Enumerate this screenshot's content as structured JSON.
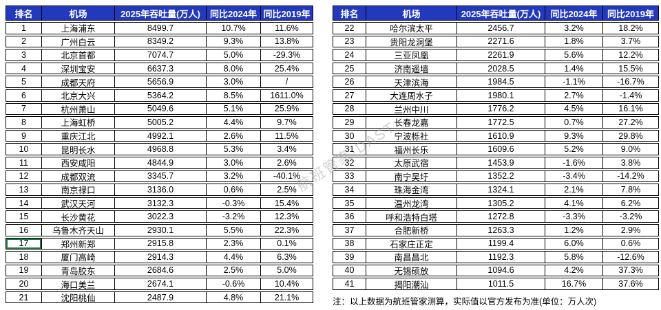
{
  "columns": [
    "排名",
    "机场",
    "2025年吞吐量(万人)",
    "同比2024年",
    "同比2019年"
  ],
  "tables": [
    {
      "name": "airport-ranking-1-21",
      "rows": [
        [
          "1",
          "上海浦东",
          "8499.7",
          "10.7%",
          "11.6%"
        ],
        [
          "2",
          "广州白云",
          "8349.2",
          "9.3%",
          "13.8%"
        ],
        [
          "3",
          "北京首都",
          "7074.7",
          "5.0%",
          "-29.3%"
        ],
        [
          "4",
          "深圳宝安",
          "6637.3",
          "8.0%",
          "25.4%"
        ],
        [
          "5",
          "成都天府",
          "5656.9",
          "3.0%",
          "/"
        ],
        [
          "6",
          "北京大兴",
          "5364.2",
          "8.5%",
          "1611.0%"
        ],
        [
          "7",
          "杭州萧山",
          "5049.6",
          "5.1%",
          "25.9%"
        ],
        [
          "8",
          "上海虹桥",
          "5005.2",
          "4.4%",
          "9.7%"
        ],
        [
          "9",
          "重庆江北",
          "4992.1",
          "2.6%",
          "11.5%"
        ],
        [
          "10",
          "昆明长水",
          "4968.8",
          "5.3%",
          "3.4%"
        ],
        [
          "11",
          "西安咸阳",
          "4844.9",
          "3.0%",
          "2.6%"
        ],
        [
          "12",
          "成都双流",
          "3345.7",
          "3.2%",
          "-40.1%"
        ],
        [
          "13",
          "南京禄口",
          "3136.0",
          "0.6%",
          "2.5%"
        ],
        [
          "14",
          "武汉天河",
          "3132.3",
          "-0.3%",
          "15.4%"
        ],
        [
          "15",
          "长沙黄花",
          "3022.3",
          "-3.2%",
          "12.3%"
        ],
        [
          "16",
          "乌鲁木齐天山",
          "2930.1",
          "5.5%",
          "22.3%"
        ],
        [
          "17",
          "郑州新郑",
          "2915.8",
          "2.3%",
          "0.1%"
        ],
        [
          "18",
          "厦门高崎",
          "2914.3",
          "4.4%",
          "6.3%"
        ],
        [
          "19",
          "青岛胶东",
          "2684.6",
          "2.5%",
          "5.0%"
        ],
        [
          "20",
          "海口美兰",
          "2674.1",
          "-0.6%",
          "10.4%"
        ],
        [
          "21",
          "沈阳桃仙",
          "2487.9",
          "4.8%",
          "21.1%"
        ]
      ]
    },
    {
      "name": "airport-ranking-22-41",
      "rows": [
        [
          "22",
          "哈尔滨太平",
          "2456.7",
          "3.2%",
          "18.2%"
        ],
        [
          "23",
          "贵阳龙洞堡",
          "2271.6",
          "1.8%",
          "3.7%"
        ],
        [
          "24",
          "三亚凤凰",
          "2261.9",
          "5.6%",
          "12.2%"
        ],
        [
          "25",
          "济南遥墙",
          "2028.5",
          "1.4%",
          "15.5%"
        ],
        [
          "26",
          "天津滨海",
          "1984.5",
          "-1.1%",
          "-16.7%"
        ],
        [
          "27",
          "大连周水子",
          "1980.1",
          "2.7%",
          "-1.4%"
        ],
        [
          "28",
          "兰州中川",
          "1776.2",
          "4.5%",
          "16.1%"
        ],
        [
          "29",
          "长春龙嘉",
          "1772.5",
          "0.7%",
          "27.2%"
        ],
        [
          "30",
          "宁波栎社",
          "1610.9",
          "9.3%",
          "29.8%"
        ],
        [
          "31",
          "福州长乐",
          "1609.6",
          "5.2%",
          "9.0%"
        ],
        [
          "32",
          "太原武宿",
          "1453.9",
          "-1.6%",
          "3.8%"
        ],
        [
          "33",
          "南宁吴圩",
          "1352.2",
          "-3.4%",
          "-14.2%"
        ],
        [
          "34",
          "珠海金湾",
          "1324.1",
          "2.1%",
          "7.8%"
        ],
        [
          "35",
          "温州龙湾",
          "1305.2",
          "4.1%",
          "6.2%"
        ],
        [
          "36",
          "呼和浩特白塔",
          "1272.8",
          "-3.3%",
          "-3.2%"
        ],
        [
          "37",
          "合肥新桥",
          "1263.3",
          "1.2%",
          "2.9%"
        ],
        [
          "38",
          "石家庄正定",
          "1199.4",
          "6.0%",
          "0.6%"
        ],
        [
          "39",
          "南昌昌北",
          "1192.3",
          "5.8%",
          "-12.6%"
        ],
        [
          "40",
          "无锡硕放",
          "1094.6",
          "4.2%",
          "37.3%"
        ],
        [
          "41",
          "揭阳潮汕",
          "1011.5",
          "16.7%",
          "37.6%"
        ]
      ]
    }
  ],
  "footnote": "注：以上数据为航班管家测算，实际值以官方发布为准(单位：万人次)",
  "watermark": "航班管家·DAST",
  "selected_cell": {
    "table_index": 0,
    "row_index": 16,
    "col_index": 0
  },
  "colors": {
    "header_bg": "#2239bd",
    "header_text": "#ffffff",
    "cell_bg": "#ffffff",
    "border": "#000000",
    "text": "#000000",
    "selection_green": "#1e7a46",
    "triangle_blue": "#2f5fd0"
  }
}
